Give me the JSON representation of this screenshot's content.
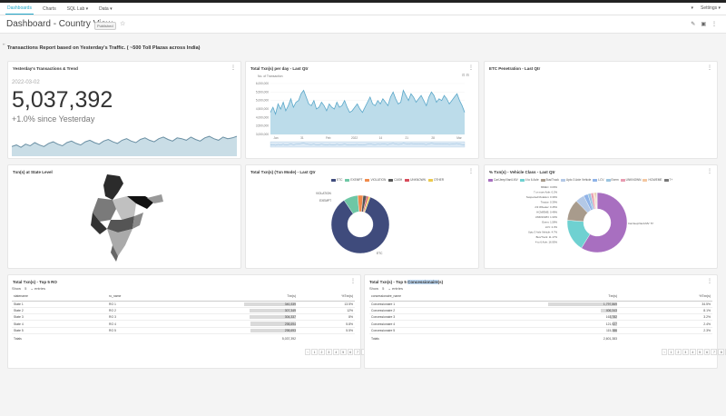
{
  "nav": {
    "items": [
      "Dashboards",
      "Charts",
      "SQL Lab ▾",
      "Data ▾"
    ],
    "flag": "▾",
    "settings": "Settings ▾"
  },
  "header": {
    "title": "Dashboard - Country View",
    "badge": "Published"
  },
  "report_title": "Transactions Report based on Yesterday's Traffic. ( ~500 Toll Plazas across India)",
  "cards": {
    "yesterday": {
      "title": "Yesterday's Transactions & Trend",
      "date": "2022-03-02",
      "value": "5,037,392",
      "subtitle": "+1.0% since Yesterday"
    },
    "total_per_day": {
      "title": "Total Txn(s) per day - Last Qtr",
      "legend": "No. of Transaction",
      "y_ticks": [
        "6,000,000",
        "5,500,000",
        "5,000,000",
        "4,500,000",
        "4,000,000",
        "3,500,000",
        "3,000,000"
      ],
      "x_ticks": [
        "Jan",
        "31",
        "Feb",
        "2022",
        "14",
        "21",
        "28",
        "Mar"
      ]
    },
    "etc": {
      "title": "ETC Penetration - Last Qtr"
    },
    "state": {
      "title": "Txn(s) at State Level"
    },
    "txn_mode": {
      "title": "Total Txn(s) (Txn Mode) - Last Qtr",
      "legend": [
        {
          "label": "ETC",
          "color": "#3f4b7c"
        },
        {
          "label": "EXEMPT",
          "color": "#6ec7a5"
        },
        {
          "label": "VIOLATION",
          "color": "#f08a4b"
        },
        {
          "label": "CASH",
          "color": "#555"
        },
        {
          "label": "UNKNOWN",
          "color": "#d84b5a"
        },
        {
          "label": "OTHER",
          "color": "#ecc94b"
        }
      ],
      "slice_labels": [
        "VIOLATION",
        "EXEMPT",
        "ETC"
      ]
    },
    "vehicle_class": {
      "title": "% Txn(s) - Vehicle Class - Last Qtr",
      "legend": [
        {
          "label": "Car/Jeep/Van/LMV",
          "color": "#a86fc0"
        },
        {
          "label": "4 to 6 Axle",
          "color": "#6fd1d1"
        },
        {
          "label": "Bus/Truck",
          "color": "#a89b8c"
        },
        {
          "label": "Upto 3 Axle Vehicle",
          "color": "#b3c8e6"
        },
        {
          "label": "LCV",
          "color": "#8fb3e8"
        },
        {
          "label": "Exem",
          "color": "#9bc4e0"
        },
        {
          "label": "UNKNOWN",
          "color": "#e89bb0"
        },
        {
          "label": "HCM/EME",
          "color": "#f3c6a0"
        },
        {
          "label": "7+",
          "color": "#777"
        }
      ],
      "left_labels": [
        "MMEC: 0.09%",
        "7 or more Axle: 0.2%",
        "Suspected/Violation: 0.39%",
        "Tractor: 0.39%",
        "2/3 Wheeler: 0.45%",
        "HCM/EME: 0.48%",
        "UNKNOWN: 1.33%",
        "Exem: 1.58%",
        "LCV: 2.3%",
        "Upto 3 Axle Vehicle: 4.7%",
        "Bus/Truck: 11.17%",
        "4 to 6 Axle: 16.95%"
      ],
      "right_label": "Car/Jeep/Van/LMV: 57.12%"
    },
    "top_ro": {
      "title": "Total Txn(s) - Top 5 RO",
      "show": "Show",
      "show_val": "5",
      "entries": "entries",
      "columns": [
        "statename",
        "ro_name",
        "Txn(s)",
        "%Txn(s)"
      ],
      "rows": [
        {
          "state": "State 1",
          "ro": "RO 1",
          "txn": "340,339",
          "pct": "13.5%",
          "frac": 1.0
        },
        {
          "state": "State 2",
          "ro": "RO 2",
          "txn": "307,349",
          "pct": "12%",
          "frac": 0.9
        },
        {
          "state": "State 3",
          "ro": "RO 3",
          "txn": "304,337",
          "pct": "8%",
          "frac": 0.89
        },
        {
          "state": "State 4",
          "ro": "RO 4",
          "txn": "298,694",
          "pct": "5.8%",
          "frac": 0.87
        },
        {
          "state": "State 5",
          "ro": "RO 5",
          "txn": "298,693",
          "pct": "5.5%",
          "frac": 0.87
        }
      ],
      "totals_label": "Totals",
      "totals_value": "5,037,392",
      "pages": [
        "‹",
        "1",
        "2",
        "3",
        "4",
        "5",
        "6",
        "7",
        "8",
        "›"
      ]
    },
    "top_conc": {
      "title_prefix": "Total Txn(s) - Top 5 ",
      "title_highlight": "Concessionaire",
      "title_suffix": "(s)",
      "show": "Show",
      "show_val": "5",
      "entries": "entries",
      "columns": [
        "concessionaire_name",
        "Txn(s)",
        "%Txn(s)"
      ],
      "rows": [
        {
          "name": "Concessionaire 1",
          "txn": "1,797,869",
          "pct": "34.5%",
          "frac": 1.0
        },
        {
          "name": "Concessionaire 2",
          "txn": "406,343",
          "pct": "8.1%",
          "frac": 0.24
        },
        {
          "name": "Concessionaire 3",
          "txn": "163,782",
          "pct": "3.2%",
          "frac": 0.1
        },
        {
          "name": "Concessionaire 4",
          "txn": "121,927",
          "pct": "2.4%",
          "frac": 0.07
        },
        {
          "name": "Concessionaire 5",
          "txn": "115,386",
          "pct": "2.3%",
          "frac": 0.07
        }
      ],
      "totals_label": "Totals",
      "totals_value": "2,601,383",
      "pages": [
        "‹",
        "1",
        "2",
        "3",
        "4",
        "5",
        "6",
        "7",
        "8",
        "›"
      ]
    }
  },
  "chart_data": [
    {
      "type": "area",
      "name": "Yesterday's Transactions & Trend sparkline",
      "values": [
        50,
        52,
        49,
        53,
        51,
        55,
        52,
        50,
        54,
        56,
        53,
        51,
        55,
        57,
        54,
        52,
        56,
        58,
        55,
        53,
        57,
        59,
        56,
        54,
        58,
        60,
        57,
        55,
        59,
        61,
        58,
        56,
        60,
        62,
        59,
        57,
        61,
        60,
        58,
        62,
        59,
        57,
        61,
        63,
        60,
        58,
        62,
        60,
        61,
        63
      ]
    },
    {
      "type": "area",
      "name": "Total Txn(s) per day - Last Qtr",
      "series": [
        {
          "name": "No. of Transaction",
          "values": [
            4.3,
            4.6,
            4.2,
            4.8,
            4.5,
            4.9,
            4.4,
            4.7,
            5.1,
            4.6,
            4.9,
            5.0,
            5.4,
            5.6,
            5.2,
            4.8,
            4.7,
            5.0,
            4.5,
            4.6,
            4.9,
            4.7,
            4.4,
            4.8,
            4.6,
            4.5,
            4.9,
            4.6,
            4.7,
            5.0,
            4.6,
            4.3,
            4.4,
            4.6,
            4.8,
            4.5,
            4.3,
            4.6,
            4.9,
            5.2,
            4.8,
            4.7,
            5.0,
            4.8,
            5.1,
            4.9,
            4.7,
            5.2,
            5.5,
            5.1,
            4.8,
            4.9,
            5.6,
            5.3,
            5.0,
            5.4,
            5.2,
            4.9,
            5.1,
            5.3,
            5.0,
            4.7,
            5.2,
            5.5,
            5.3,
            4.9,
            5.1,
            5.0,
            5.3,
            5.1,
            4.8,
            5.0,
            5.2,
            5.4,
            5.0,
            4.7,
            4.3
          ]
        }
      ],
      "ylim": [
        3.0,
        6.0
      ]
    },
    {
      "type": "pie",
      "name": "Total Txn(s) (Txn Mode) - Last Qtr",
      "labels": [
        "ETC",
        "EXEMPT",
        "VIOLATION",
        "CASH",
        "UNKNOWN",
        "OTHER"
      ],
      "values": [
        85,
        8,
        3,
        2,
        1,
        1
      ]
    },
    {
      "type": "pie",
      "name": "% Txn(s) - Vehicle Class - Last Qtr",
      "labels": [
        "Car/Jeep/Van/LMV",
        "4 to 6 Axle",
        "Bus/Truck",
        "Upto 3 Axle Vehicle",
        "LCV",
        "Exem",
        "UNKNOWN",
        "HCM/EME",
        "2/3 Wheeler",
        "Tractor",
        "Suspected/Violation",
        "7 or more Axle",
        "MMEC"
      ],
      "values": [
        57.12,
        16.95,
        11.17,
        4.7,
        2.3,
        1.58,
        1.33,
        0.48,
        0.45,
        0.39,
        0.39,
        0.2,
        0.09
      ]
    }
  ]
}
